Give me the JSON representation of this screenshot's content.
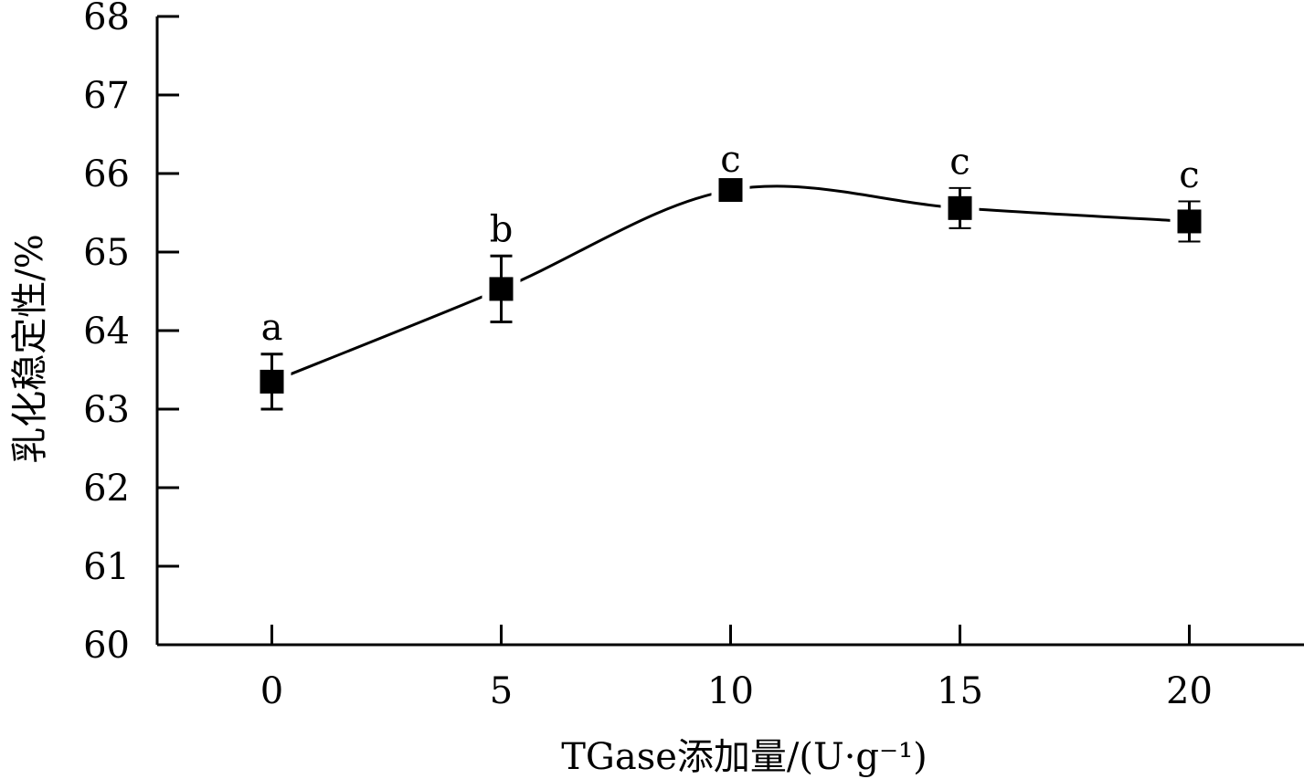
{
  "chart_data": {
    "type": "line",
    "title": "",
    "xlabel": "TGase添加量/(U·g⁻¹)",
    "ylabel": "乳化稳定性/%",
    "xlim": [
      -2.5,
      22.5
    ],
    "ylim": [
      60,
      68
    ],
    "xticks": [
      "0",
      "5",
      "10",
      "15",
      "20"
    ],
    "yticks": [
      "60",
      "61",
      "62",
      "63",
      "64",
      "65",
      "66",
      "67",
      "68"
    ],
    "grid": false,
    "legend": "none",
    "series": [
      {
        "marker": "square",
        "color": "#000000",
        "x": [
          0,
          5,
          10,
          15,
          20
        ],
        "y": [
          63.35,
          64.53,
          65.79,
          65.56,
          65.39
        ],
        "error": [
          0.35,
          0.42,
          0.05,
          0.25,
          0.25
        ],
        "labels": [
          "a",
          "b",
          "c",
          "c",
          "c"
        ]
      }
    ]
  }
}
